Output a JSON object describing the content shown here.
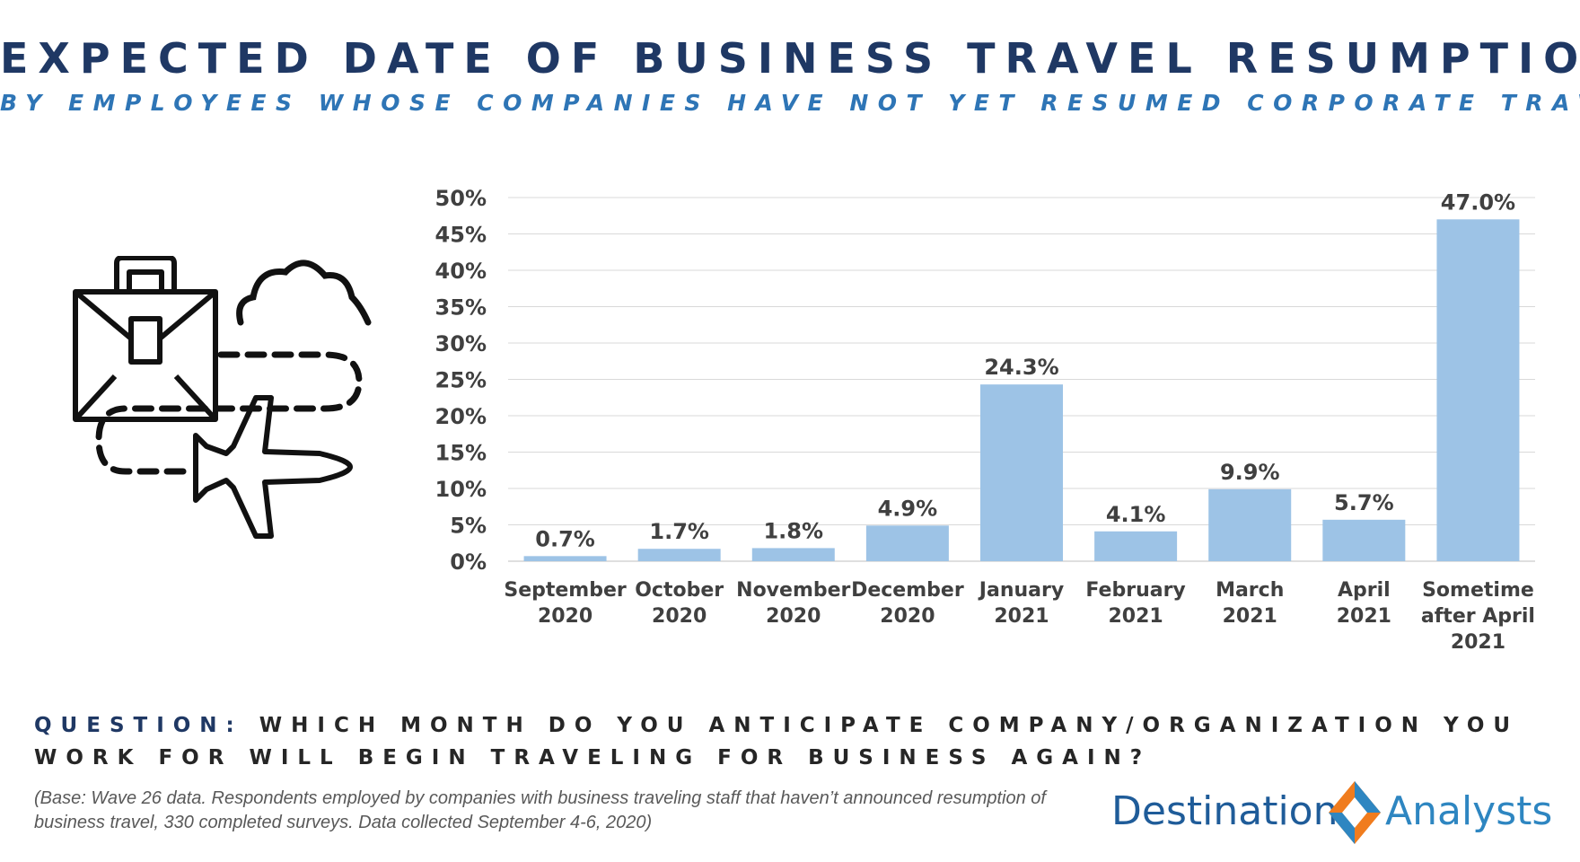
{
  "title": "EXPECTED DATE OF BUSINESS TRAVEL RESUMPTION",
  "subtitle": "BY EMPLOYEES WHOSE COMPANIES HAVE NOT YET RESUMED CORPORATE TRAVEL",
  "question": {
    "label": "QUESTION:",
    "text": "WHICH MONTH DO YOU ANTICIPATE COMPANY/ORGANIZATION YOU WORK FOR WILL BEGIN TRAVELING FOR BUSINESS AGAIN?"
  },
  "base_note": "(Base: Wave 26 data. Respondents employed by companies with business traveling staff that haven’t announced resumption of business travel, 330 completed surveys. Data collected September 4-6, 2020)",
  "logo": {
    "word1": "Destination",
    "word2": "Analysts"
  },
  "illustration_icons": [
    "briefcase-icon",
    "cloud-icon",
    "airplane-icon"
  ],
  "colors": {
    "bar": "#9dc3e6",
    "title": "#1f3864",
    "subtitle": "#2e75b6",
    "logo_orange": "#f07c1e",
    "logo_blue": "#2e86c1"
  },
  "chart_data": {
    "type": "bar",
    "categories": [
      [
        "September",
        "2020"
      ],
      [
        "October",
        "2020"
      ],
      [
        "November",
        "2020"
      ],
      [
        "December",
        "2020"
      ],
      [
        "January",
        "2021"
      ],
      [
        "February",
        "2021"
      ],
      [
        "March",
        "2021"
      ],
      [
        "April",
        "2021"
      ],
      [
        "Sometime",
        "after April",
        "2021"
      ]
    ],
    "values": [
      0.7,
      1.7,
      1.8,
      4.9,
      24.3,
      4.1,
      9.9,
      5.7,
      47.0
    ],
    "value_labels": [
      "0.7%",
      "1.7%",
      "1.8%",
      "4.9%",
      "24.3%",
      "4.1%",
      "9.9%",
      "5.7%",
      "47.0%"
    ],
    "ylim": [
      0,
      50
    ],
    "y_ticks": [
      0,
      5,
      10,
      15,
      20,
      25,
      30,
      35,
      40,
      45,
      50
    ],
    "y_tick_labels": [
      "0%",
      "5%",
      "10%",
      "15%",
      "20%",
      "25%",
      "30%",
      "35%",
      "40%",
      "45%",
      "50%"
    ],
    "grid": true,
    "legend": "none"
  }
}
